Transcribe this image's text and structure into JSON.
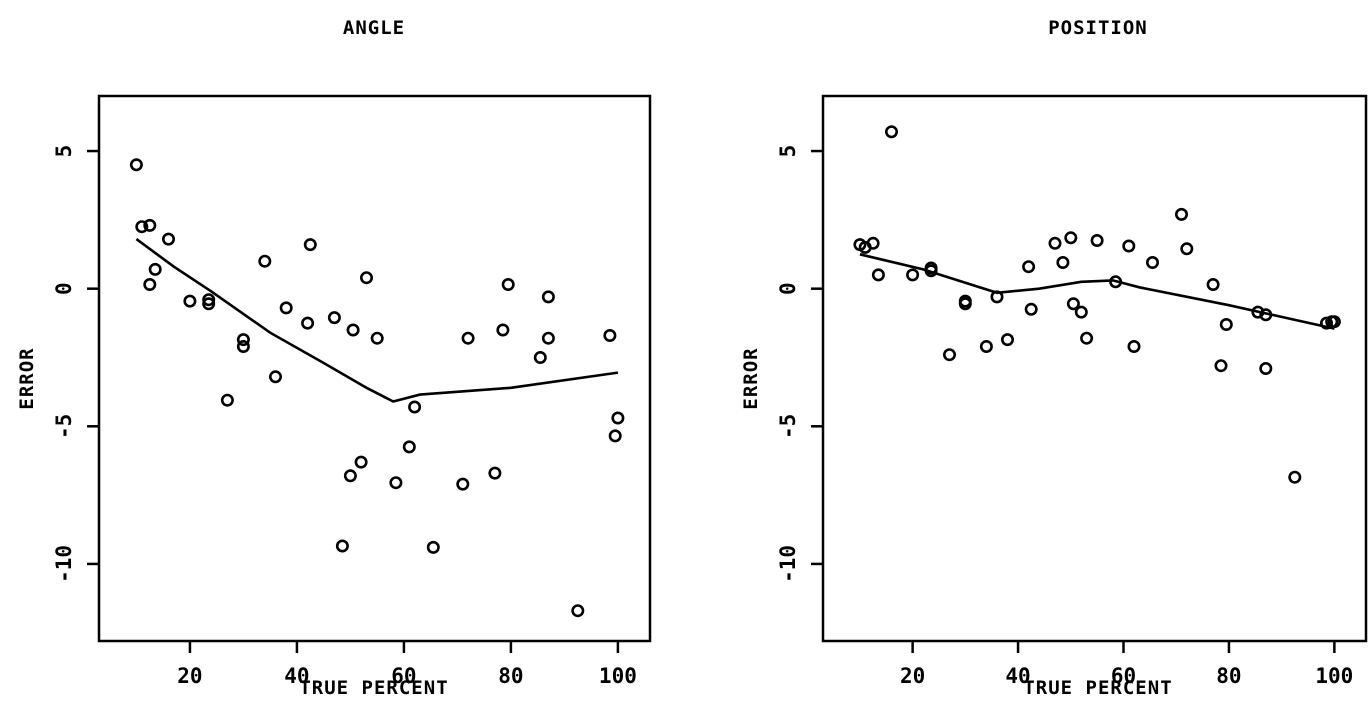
{
  "chart_data": [
    {
      "type": "scatter",
      "title": "ANGLE",
      "xlabel": "TRUE PERCENT",
      "ylabel": "ERROR",
      "xlim": [
        3,
        106
      ],
      "ylim": [
        -12.8,
        7
      ],
      "xticks": [
        20,
        40,
        60,
        80,
        100
      ],
      "yticks": [
        5,
        0,
        -5,
        -10
      ],
      "xtick_labels": [
        "20",
        "40",
        "60",
        "80",
        "100"
      ],
      "ytick_labels": [
        "5",
        "0",
        "-5",
        "-10"
      ],
      "grid": false,
      "points": [
        [
          10,
          4.5
        ],
        [
          11,
          2.25
        ],
        [
          12.5,
          2.3
        ],
        [
          12.5,
          0.15
        ],
        [
          13.5,
          0.7
        ],
        [
          16,
          1.8
        ],
        [
          20,
          -0.45
        ],
        [
          23.5,
          -0.4
        ],
        [
          23.5,
          -0.55
        ],
        [
          27,
          -4.05
        ],
        [
          30,
          -1.85
        ],
        [
          30,
          -2.1
        ],
        [
          34,
          1.0
        ],
        [
          36,
          -3.2
        ],
        [
          38,
          -0.7
        ],
        [
          42,
          -1.25
        ],
        [
          42.5,
          1.6
        ],
        [
          47,
          -1.05
        ],
        [
          48.5,
          -9.35
        ],
        [
          50,
          -6.8
        ],
        [
          50.5,
          -1.5
        ],
        [
          52,
          -6.3
        ],
        [
          53,
          0.4
        ],
        [
          55,
          -1.8
        ],
        [
          58.5,
          -7.05
        ],
        [
          61,
          -5.75
        ],
        [
          62,
          -4.3
        ],
        [
          65.5,
          -9.4
        ],
        [
          71,
          -7.1
        ],
        [
          72,
          -1.8
        ],
        [
          77,
          -6.7
        ],
        [
          78.5,
          -1.5
        ],
        [
          79.5,
          0.15
        ],
        [
          85.5,
          -2.5
        ],
        [
          87,
          -1.8
        ],
        [
          87,
          -0.3
        ],
        [
          92.5,
          -11.7
        ],
        [
          98.5,
          -1.7
        ],
        [
          99.5,
          -5.35
        ],
        [
          100,
          -4.7
        ]
      ],
      "fit_line": [
        [
          10,
          1.8
        ],
        [
          17,
          0.8
        ],
        [
          24,
          -0.1
        ],
        [
          35,
          -1.6
        ],
        [
          45,
          -2.7
        ],
        [
          53,
          -3.6
        ],
        [
          58,
          -4.1
        ],
        [
          63,
          -3.85
        ],
        [
          80,
          -3.6
        ],
        [
          100,
          -3.05
        ]
      ]
    },
    {
      "type": "scatter",
      "title": "POSITION",
      "xlabel": "TRUE PERCENT",
      "ylabel": "ERROR",
      "xlim": [
        3,
        106
      ],
      "ylim": [
        -12.8,
        7
      ],
      "xticks": [
        20,
        40,
        60,
        80,
        100
      ],
      "yticks": [
        5,
        0,
        -5,
        -10
      ],
      "xtick_labels": [
        "20",
        "40",
        "60",
        "80",
        "100"
      ],
      "ytick_labels": [
        "5",
        "0",
        "-5",
        "-10"
      ],
      "grid": false,
      "points": [
        [
          10,
          1.6
        ],
        [
          11,
          1.5
        ],
        [
          12.5,
          1.65
        ],
        [
          13.5,
          0.5
        ],
        [
          16,
          5.7
        ],
        [
          20,
          0.5
        ],
        [
          23.5,
          0.75
        ],
        [
          23.5,
          0.65
        ],
        [
          27,
          -2.4
        ],
        [
          30,
          -0.45
        ],
        [
          30,
          -0.55
        ],
        [
          34,
          -2.1
        ],
        [
          36,
          -0.3
        ],
        [
          38,
          -1.85
        ],
        [
          42,
          0.8
        ],
        [
          42.5,
          -0.75
        ],
        [
          47,
          1.65
        ],
        [
          48.5,
          0.95
        ],
        [
          50,
          1.85
        ],
        [
          50.5,
          -0.55
        ],
        [
          52,
          -0.85
        ],
        [
          53,
          -1.8
        ],
        [
          55,
          1.75
        ],
        [
          58.5,
          0.25
        ],
        [
          61,
          1.55
        ],
        [
          62,
          -2.1
        ],
        [
          65.5,
          0.95
        ],
        [
          71,
          2.7
        ],
        [
          72,
          1.45
        ],
        [
          77,
          0.15
        ],
        [
          78.5,
          -2.8
        ],
        [
          79.5,
          -1.3
        ],
        [
          85.5,
          -0.85
        ],
        [
          87,
          -0.95
        ],
        [
          87,
          -2.9
        ],
        [
          92.5,
          -6.85
        ],
        [
          98.5,
          -1.25
        ],
        [
          99.5,
          -1.2
        ],
        [
          100,
          -1.2
        ]
      ],
      "fit_line": [
        [
          10,
          1.25
        ],
        [
          22,
          0.7
        ],
        [
          36,
          -0.15
        ],
        [
          44,
          0.0
        ],
        [
          52,
          0.25
        ],
        [
          58,
          0.3
        ],
        [
          63,
          0.05
        ],
        [
          80,
          -0.6
        ],
        [
          100,
          -1.45
        ]
      ]
    }
  ]
}
